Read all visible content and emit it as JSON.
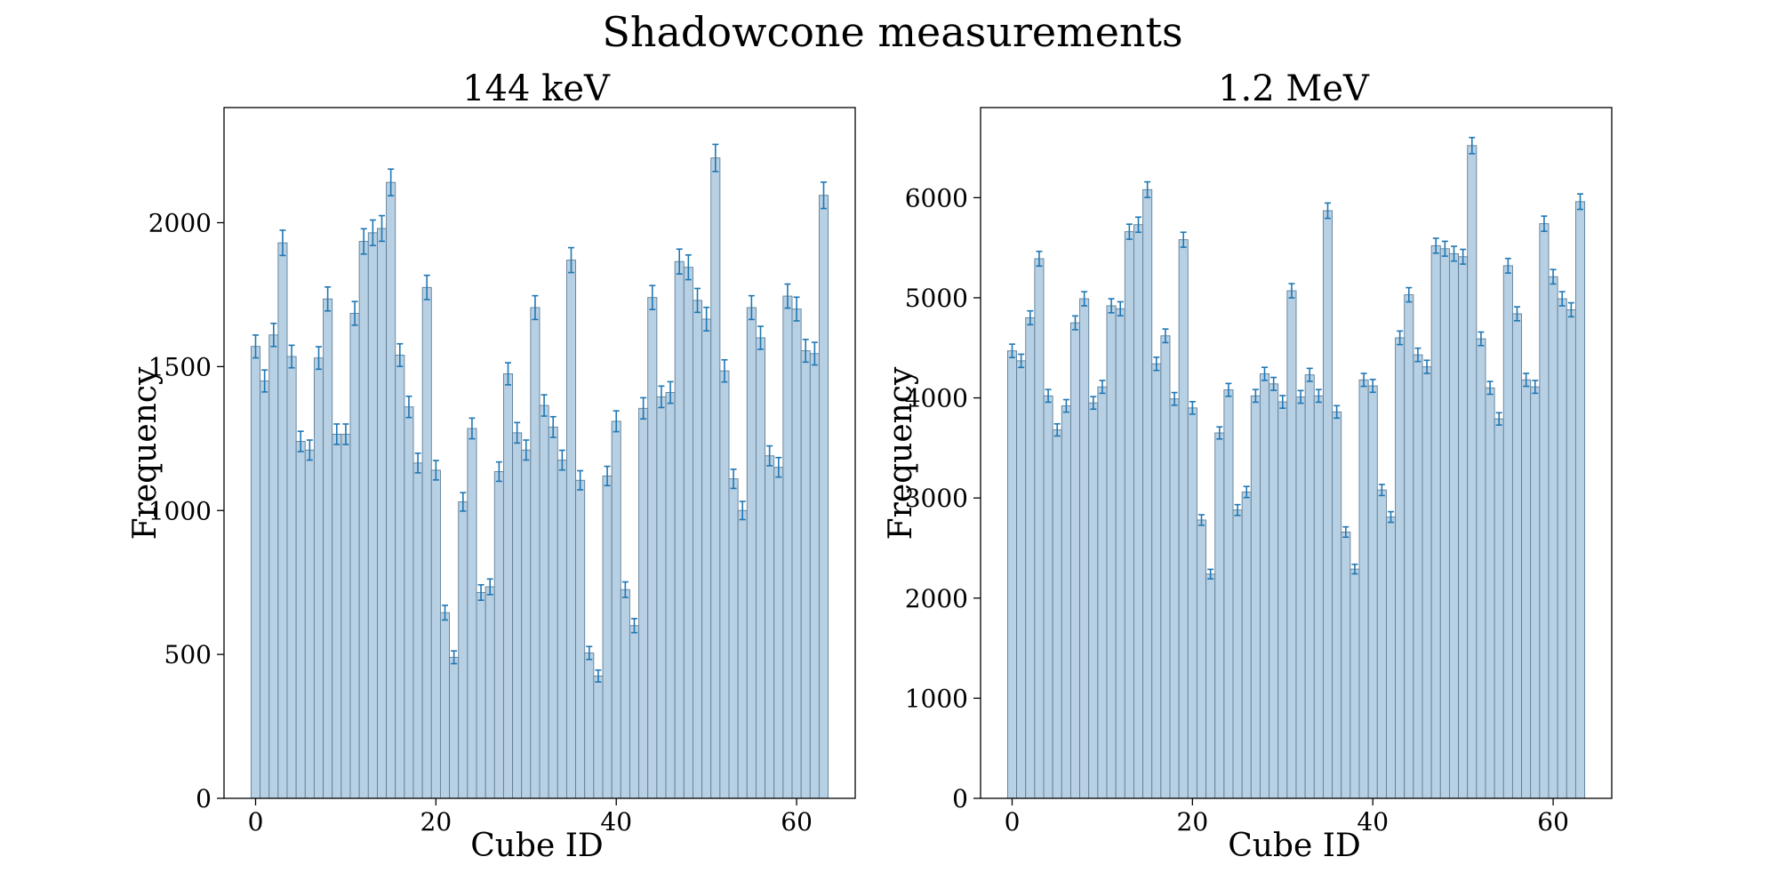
{
  "figure": {
    "title": "Shadowcone measurements"
  },
  "style": {
    "bar_fill": "#b8d0e3",
    "bar_edge": "#5e7f98",
    "errorbar": "#1f77b4",
    "axes": "#000000"
  },
  "chart_data": [
    {
      "type": "bar",
      "title": "144 keV",
      "xlabel": "Cube ID",
      "ylabel": "Frequency",
      "xlim": [
        -3.5,
        66.5
      ],
      "ylim": [
        0,
        2400
      ],
      "xticks": [
        0,
        20,
        40,
        60
      ],
      "xtick_labels": [
        "0",
        "20",
        "40",
        "60"
      ],
      "yticks": [
        0,
        500,
        1000,
        1500,
        2000
      ],
      "ytick_labels": [
        "0",
        "500",
        "1000",
        "1500",
        "2000"
      ],
      "x": [
        0,
        1,
        2,
        3,
        4,
        5,
        6,
        7,
        8,
        9,
        10,
        11,
        12,
        13,
        14,
        15,
        16,
        17,
        18,
        19,
        20,
        21,
        22,
        23,
        24,
        25,
        26,
        27,
        28,
        29,
        30,
        31,
        32,
        33,
        34,
        35,
        36,
        37,
        38,
        39,
        40,
        41,
        42,
        43,
        44,
        45,
        46,
        47,
        48,
        49,
        50,
        51,
        52,
        53,
        54,
        55,
        56,
        57,
        58,
        59,
        60,
        61,
        62,
        63
      ],
      "values": [
        1570,
        1450,
        1610,
        1930,
        1535,
        1240,
        1210,
        1530,
        1735,
        1265,
        1265,
        1685,
        1935,
        1965,
        1980,
        2140,
        1540,
        1360,
        1165,
        1775,
        1140,
        645,
        490,
        1030,
        1285,
        715,
        735,
        1135,
        1475,
        1270,
        1210,
        1705,
        1365,
        1290,
        1175,
        1870,
        1105,
        505,
        425,
        1120,
        1310,
        725,
        600,
        1355,
        1740,
        1395,
        1410,
        1865,
        1845,
        1730,
        1665,
        2225,
        1485,
        1110,
        1000,
        1705,
        1600,
        1190,
        1150,
        1745,
        1700,
        1555,
        1545,
        2095
      ]
    },
    {
      "type": "bar",
      "title": "1.2 MeV",
      "xlabel": "Cube ID",
      "ylabel": "Frequency",
      "xlim": [
        -3.5,
        66.5
      ],
      "ylim": [
        0,
        6900
      ],
      "xticks": [
        0,
        20,
        40,
        60
      ],
      "xtick_labels": [
        "0",
        "20",
        "40",
        "60"
      ],
      "yticks": [
        0,
        1000,
        2000,
        3000,
        4000,
        5000,
        6000
      ],
      "ytick_labels": [
        "0",
        "1000",
        "2000",
        "3000",
        "4000",
        "5000",
        "6000"
      ],
      "x": [
        0,
        1,
        2,
        3,
        4,
        5,
        6,
        7,
        8,
        9,
        10,
        11,
        12,
        13,
        14,
        15,
        16,
        17,
        18,
        19,
        20,
        21,
        22,
        23,
        24,
        25,
        26,
        27,
        28,
        29,
        30,
        31,
        32,
        33,
        34,
        35,
        36,
        37,
        38,
        39,
        40,
        41,
        42,
        43,
        44,
        45,
        46,
        47,
        48,
        49,
        50,
        51,
        52,
        53,
        54,
        55,
        56,
        57,
        58,
        59,
        60,
        61,
        62,
        63
      ],
      "values": [
        4470,
        4370,
        4800,
        5390,
        4020,
        3680,
        3920,
        4750,
        4990,
        3950,
        4110,
        4920,
        4890,
        5660,
        5730,
        6080,
        4340,
        4620,
        3990,
        5580,
        3900,
        2780,
        2240,
        3650,
        4080,
        2880,
        3060,
        4020,
        4240,
        4140,
        3960,
        5070,
        4010,
        4230,
        4020,
        5870,
        3860,
        2660,
        2290,
        4180,
        4120,
        3080,
        2810,
        4600,
        5030,
        4430,
        4310,
        5520,
        5490,
        5440,
        5410,
        6520,
        4590,
        4100,
        3790,
        5320,
        4840,
        4180,
        4110,
        5740,
        5210,
        4990,
        4880,
        5960
      ]
    }
  ]
}
